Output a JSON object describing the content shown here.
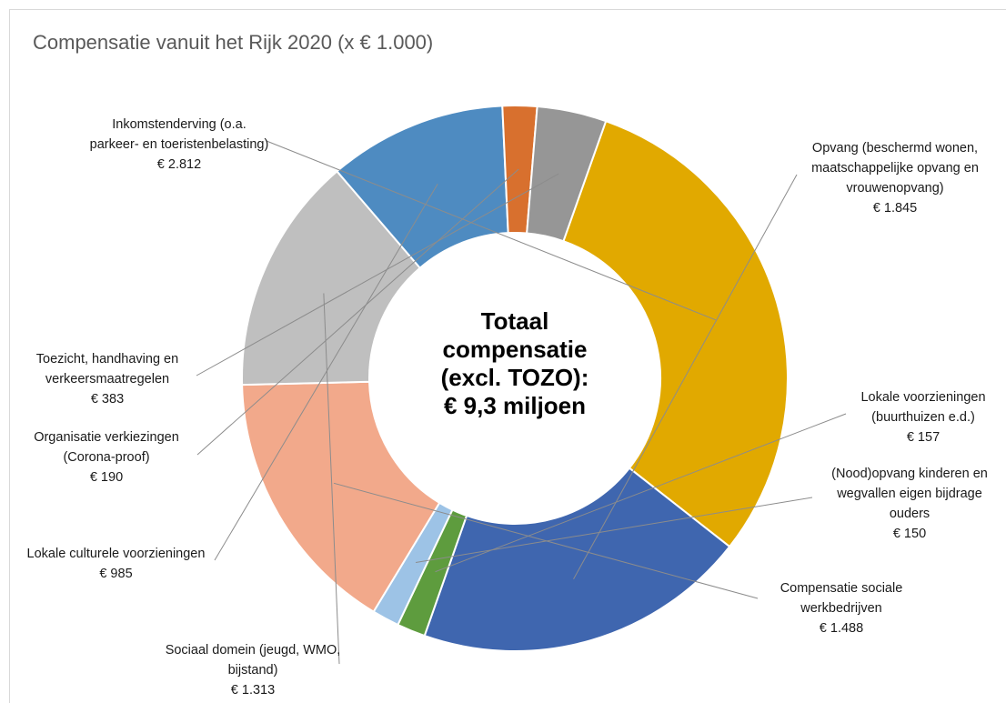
{
  "chart_data": {
    "type": "pie",
    "title": "Compensatie vanuit het Rijk 2020 (x € 1.000)",
    "center_text": [
      "Totaal",
      "compensatie",
      "(excl. TOZO):",
      "€ 9,3 miljoen"
    ],
    "series": [
      {
        "values": [
          {
            "label": [
              "Inkomstenderving (o.a.",
              "parkeer- en toeristenbelasting)"
            ],
            "value_text": "€ 2.812",
            "value": 2812,
            "color": "#E1A900"
          },
          {
            "label": [
              "Opvang (beschermd wonen,",
              "maatschappelijke opvang en",
              "vrouwenopvang)"
            ],
            "value_text": "€ 1.845",
            "value": 1845,
            "color": "#3F66AF"
          },
          {
            "label": [
              "Lokale voorzieningen",
              "(buurthuizen e.d.)"
            ],
            "value_text": "€ 157",
            "value": 157,
            "color": "#5E9C3E"
          },
          {
            "label": [
              "(Nood)opvang kinderen en",
              "wegvallen eigen bijdrage",
              "ouders"
            ],
            "value_text": "€ 150",
            "value": 150,
            "color": "#9DC3E6"
          },
          {
            "label": [
              "Compensatie sociale",
              "werkbedrijven"
            ],
            "value_text": "€ 1.488",
            "value": 1488,
            "color": "#F2A98B"
          },
          {
            "label": [
              "Sociaal domein (jeugd, WMO,",
              "bijstand)"
            ],
            "value_text": "€ 1.313",
            "value": 1313,
            "color": "#BFBFBF"
          },
          {
            "label": [
              "Lokale culturele voorzieningen"
            ],
            "value_text": "€ 985",
            "value": 985,
            "color": "#4E8BC1"
          },
          {
            "label": [
              "Organisatie verkiezingen",
              "(Corona-proof)"
            ],
            "value_text": "€ 190",
            "value": 190,
            "color": "#D8702E"
          },
          {
            "label": [
              "Toezicht, handhaving en",
              "verkeersmaatregelen"
            ],
            "value_text": "€ 383",
            "value": 383,
            "color": "#969696"
          }
        ]
      }
    ],
    "legend": "none"
  }
}
